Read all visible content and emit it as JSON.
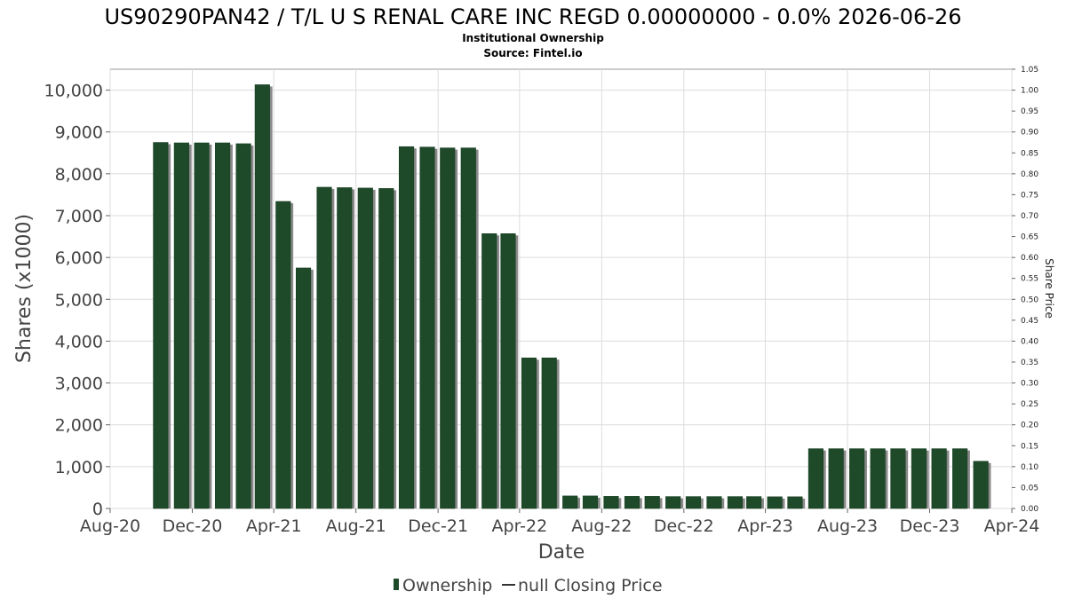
{
  "chart_data": {
    "type": "bar",
    "title": "US90290PAN42 / T/L U S RENAL CARE INC REGD 0.00000000 - 0.0% 2026-06-26",
    "subtitle_lines": [
      "Institutional Ownership",
      "Source: Fintel.io"
    ],
    "xlabel": "Date",
    "ylabel": "Shares (x1000)",
    "y2label": "Share Price",
    "ylim": [
      0,
      10500
    ],
    "y2lim": [
      0,
      1.05
    ],
    "xlim": [
      "2020-08-01",
      "2024-04-01"
    ],
    "grid": true,
    "legend_position": "bottom-center",
    "colors": {
      "bar": "#1e4a29",
      "bar_shadow": "#8a8a8a",
      "line": "#333333"
    },
    "x_ticks": [
      {
        "date": "2020-08-01",
        "label": "Aug-20"
      },
      {
        "date": "2020-12-01",
        "label": "Dec-20"
      },
      {
        "date": "2021-04-01",
        "label": "Apr-21"
      },
      {
        "date": "2021-08-01",
        "label": "Aug-21"
      },
      {
        "date": "2021-12-01",
        "label": "Dec-21"
      },
      {
        "date": "2022-04-01",
        "label": "Apr-22"
      },
      {
        "date": "2022-08-01",
        "label": "Aug-22"
      },
      {
        "date": "2022-12-01",
        "label": "Dec-22"
      },
      {
        "date": "2023-04-01",
        "label": "Apr-23"
      },
      {
        "date": "2023-08-01",
        "label": "Aug-23"
      },
      {
        "date": "2023-12-01",
        "label": "Dec-23"
      },
      {
        "date": "2024-04-01",
        "label": "Apr-24"
      }
    ],
    "y_ticks": [
      0,
      1000,
      2000,
      3000,
      4000,
      5000,
      6000,
      7000,
      8000,
      9000,
      10000
    ],
    "y_tick_labels": [
      "0",
      "1,000",
      "2,000",
      "3,000",
      "4,000",
      "5,000",
      "6,000",
      "7,000",
      "8,000",
      "9,000",
      "10,000"
    ],
    "y2_ticks": [
      "0.00",
      "0.05",
      "0.10",
      "0.15",
      "0.20",
      "0.25",
      "0.30",
      "0.35",
      "0.40",
      "0.45",
      "0.50",
      "0.55",
      "0.60",
      "0.65",
      "0.70",
      "0.75",
      "0.80",
      "0.85",
      "0.90",
      "0.95",
      "1.00",
      "1.05"
    ],
    "series": [
      {
        "name": "Ownership",
        "dates": [
          "2020-10-15",
          "2020-11-15",
          "2020-12-15",
          "2021-01-15",
          "2021-02-15",
          "2021-03-15",
          "2021-04-15",
          "2021-05-15",
          "2021-06-15",
          "2021-07-15",
          "2021-08-15",
          "2021-09-15",
          "2021-10-15",
          "2021-11-15",
          "2021-12-15",
          "2022-01-15",
          "2022-02-15",
          "2022-03-15",
          "2022-04-15",
          "2022-05-15",
          "2022-06-15",
          "2022-07-15",
          "2022-08-15",
          "2022-09-15",
          "2022-10-15",
          "2022-11-15",
          "2022-12-15",
          "2023-01-15",
          "2023-02-15",
          "2023-03-15",
          "2023-04-15",
          "2023-05-15",
          "2023-06-15",
          "2023-07-15",
          "2023-08-15",
          "2023-09-15",
          "2023-10-15",
          "2023-11-15",
          "2023-12-15",
          "2024-01-15",
          "2024-02-15"
        ],
        "values": [
          8750,
          8740,
          8740,
          8740,
          8720,
          10130,
          7340,
          5750,
          7680,
          7670,
          7660,
          7650,
          8650,
          8640,
          8620,
          8620,
          6570,
          6570,
          3600,
          3600,
          300,
          300,
          290,
          290,
          290,
          285,
          285,
          285,
          285,
          285,
          280,
          280,
          1430,
          1430,
          1430,
          1430,
          1430,
          1430,
          1430,
          1430,
          1130
        ]
      },
      {
        "name": "null Closing Price",
        "values": []
      }
    ]
  }
}
